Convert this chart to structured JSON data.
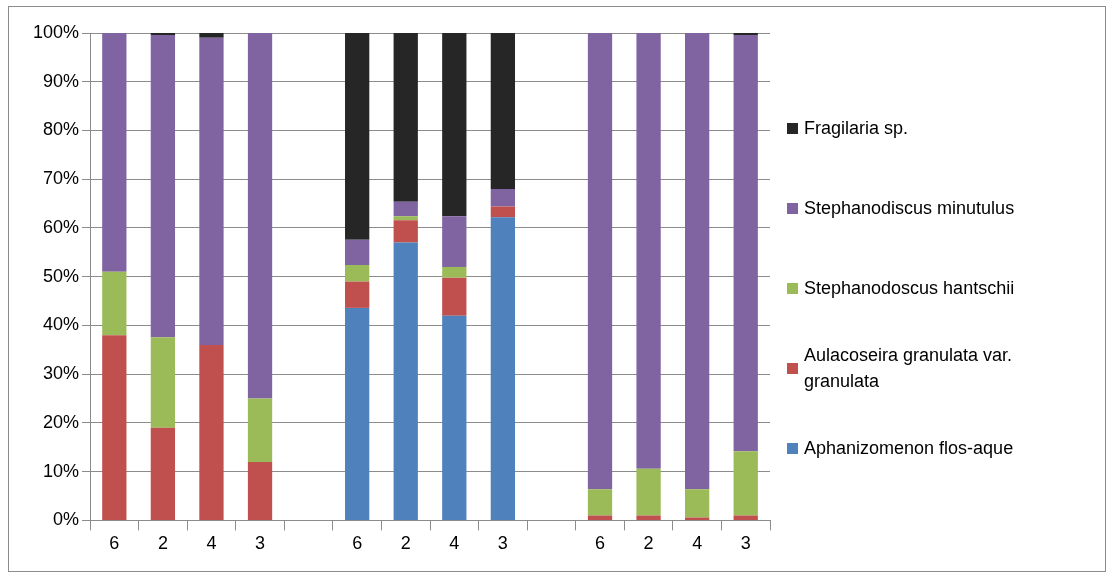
{
  "chart_data": {
    "type": "bar",
    "stacked": true,
    "categories": [
      "6",
      "2",
      "4",
      "3",
      null,
      "6",
      "2",
      "4",
      "3",
      null,
      "6",
      "2",
      "4",
      "3"
    ],
    "series": [
      {
        "name": "Aphanizomenon flos-aque",
        "color": "#4f81bd",
        "values": [
          0,
          0,
          0,
          0,
          null,
          43.6,
          57,
          42,
          62.2,
          null,
          0,
          0,
          0,
          0
        ]
      },
      {
        "name": "Aulacoseira granulata var. granulata",
        "color": "#c0504d",
        "values": [
          38,
          19,
          36,
          12,
          null,
          5.4,
          4.6,
          7.8,
          2.2,
          null,
          1,
          1,
          0.6,
          1
        ]
      },
      {
        "name": "Stephanodoscus hantschii",
        "color": "#9bbb59",
        "values": [
          13,
          18.6,
          0,
          13,
          null,
          3.4,
          0.8,
          2.2,
          0,
          null,
          5.4,
          9.6,
          5.8,
          13.2
        ]
      },
      {
        "name": "Stephanodiscus minutulus",
        "color": "#8064a2",
        "values": [
          49,
          62,
          63,
          75,
          null,
          5.2,
          3,
          10.4,
          3.6,
          null,
          93.6,
          89.4,
          93.6,
          85.4
        ]
      },
      {
        "name": "Fragilaria sp.",
        "color": "#262626",
        "values": [
          0,
          0.4,
          1,
          0,
          null,
          42.4,
          34.6,
          37.6,
          32,
          null,
          0,
          0,
          0,
          0.4
        ]
      }
    ],
    "ylim": [
      0,
      100
    ],
    "yticks": [
      {
        "value": 0,
        "label": "0%"
      },
      {
        "value": 10,
        "label": "10%"
      },
      {
        "value": 20,
        "label": "20%"
      },
      {
        "value": 30,
        "label": "30%"
      },
      {
        "value": 40,
        "label": "40%"
      },
      {
        "value": 50,
        "label": "50%"
      },
      {
        "value": 60,
        "label": "60%"
      },
      {
        "value": 70,
        "label": "70%"
      },
      {
        "value": 80,
        "label": "80%"
      },
      {
        "value": 90,
        "label": "90%"
      },
      {
        "value": 100,
        "label": "100%"
      }
    ],
    "grid": "y",
    "legend": "right"
  }
}
